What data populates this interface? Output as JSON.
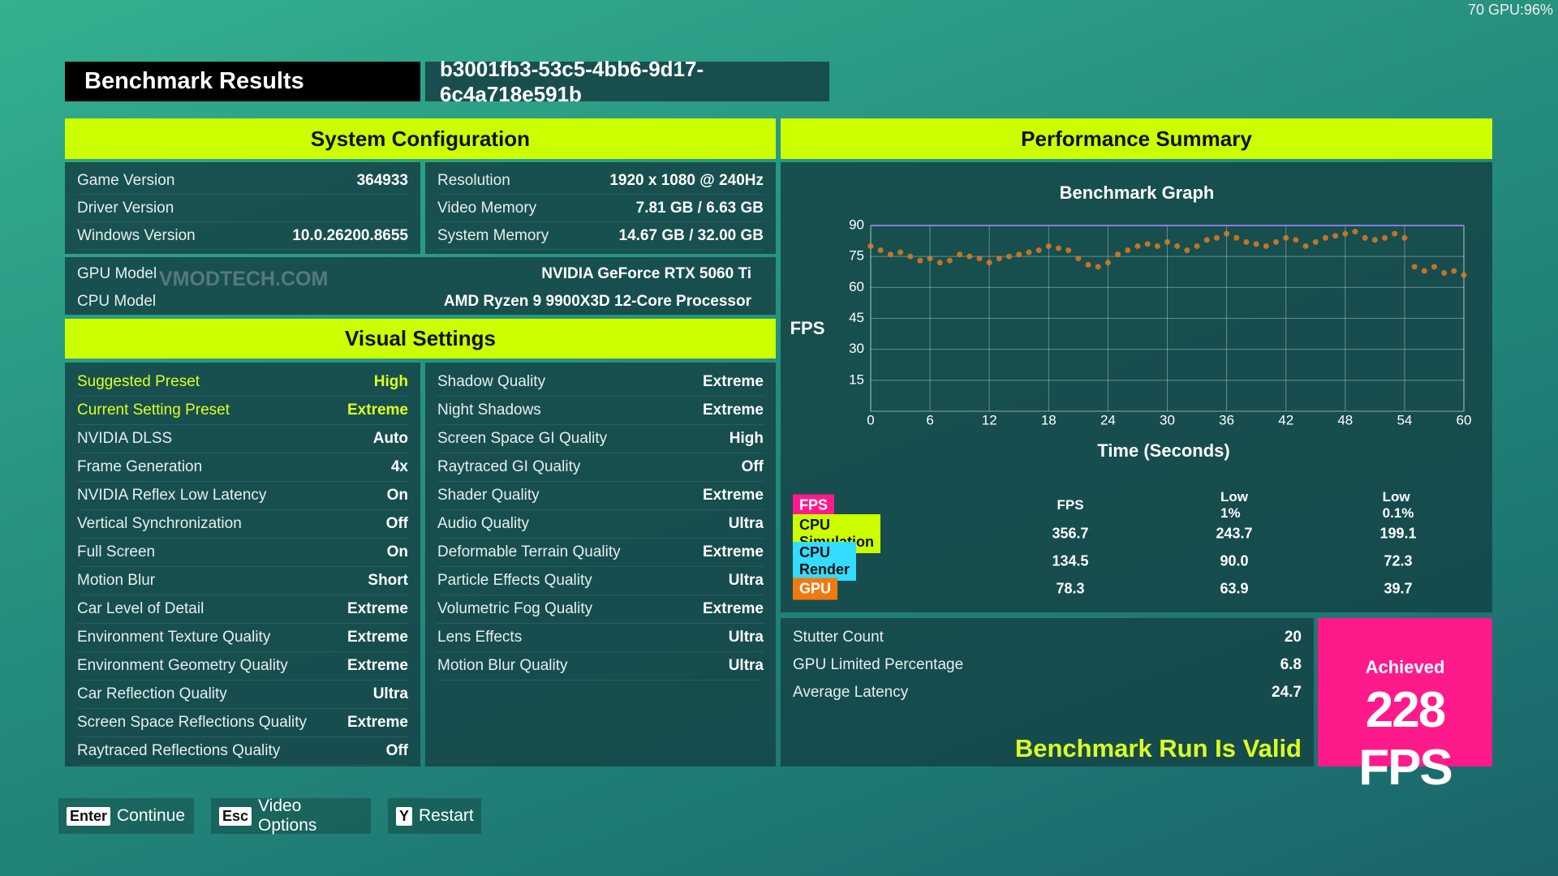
{
  "overlay": "70 GPU:96%",
  "watermark": "VMODTECH.COM",
  "header": {
    "title": "Benchmark Results",
    "run_id": "b3001fb3-53c5-4bb6-9d17-6c4a718e591b"
  },
  "system_configuration": {
    "title": "System Configuration",
    "left": [
      [
        "Game Version",
        "364933"
      ],
      [
        "Driver Version",
        ""
      ],
      [
        "Windows Version",
        "10.0.26200.8655"
      ]
    ],
    "right": [
      [
        "Resolution",
        "1920 x 1080 @ 240Hz"
      ],
      [
        "Video Memory",
        "7.81 GB / 6.63 GB"
      ],
      [
        "System Memory",
        "14.67 GB / 32.00 GB"
      ]
    ],
    "hardware": [
      [
        "GPU Model",
        "NVIDIA GeForce RTX 5060 Ti"
      ],
      [
        "CPU Model",
        "AMD Ryzen 9 9900X3D 12-Core Processor"
      ]
    ]
  },
  "visual_settings": {
    "title": "Visual Settings",
    "left": [
      [
        "Suggested Preset",
        "High"
      ],
      [
        "Current Setting Preset",
        "Extreme"
      ],
      [
        "NVIDIA DLSS",
        "Auto"
      ],
      [
        "Frame Generation",
        "4x"
      ],
      [
        "NVIDIA Reflex Low Latency",
        "On"
      ],
      [
        "Vertical Synchronization",
        "Off"
      ],
      [
        "Full Screen",
        "On"
      ],
      [
        "Motion Blur",
        "Short"
      ],
      [
        "Car Level of Detail",
        "Extreme"
      ],
      [
        "Environment Texture Quality",
        "Extreme"
      ],
      [
        "Environment Geometry Quality",
        "Extreme"
      ],
      [
        "Car Reflection Quality",
        "Ultra"
      ],
      [
        "Screen Space Reflections Quality",
        "Extreme"
      ],
      [
        "Raytraced Reflections Quality",
        "Off"
      ]
    ],
    "right": [
      [
        "Shadow Quality",
        "Extreme"
      ],
      [
        "Night Shadows",
        "Extreme"
      ],
      [
        "Screen Space GI Quality",
        "High"
      ],
      [
        "Raytraced GI Quality",
        "Off"
      ],
      [
        "Shader Quality",
        "Extreme"
      ],
      [
        "Audio Quality",
        "Ultra"
      ],
      [
        "Deformable Terrain Quality",
        "Extreme"
      ],
      [
        "Particle Effects Quality",
        "Ultra"
      ],
      [
        "Volumetric Fog Quality",
        "Extreme"
      ],
      [
        "Lens Effects",
        "Ultra"
      ],
      [
        "Motion Blur Quality",
        "Ultra"
      ]
    ]
  },
  "performance_summary": {
    "title": "Performance Summary",
    "chart_data": {
      "type": "scatter",
      "title": "Benchmark Graph",
      "y_label": "FPS",
      "x_label": "Time (Seconds)",
      "x": [
        0,
        1,
        2,
        3,
        4,
        5,
        6,
        7,
        8,
        9,
        10,
        11,
        12,
        13,
        14,
        15,
        16,
        17,
        18,
        19,
        20,
        21,
        22,
        23,
        24,
        25,
        26,
        27,
        28,
        29,
        30,
        31,
        32,
        33,
        34,
        35,
        36,
        37,
        38,
        39,
        40,
        41,
        42,
        43,
        44,
        45,
        46,
        47,
        48,
        49,
        50,
        51,
        52,
        53,
        54,
        55,
        56,
        57,
        58,
        59,
        60
      ],
      "series": [
        {
          "color": "#e07a20",
          "values": [
            80,
            78,
            76,
            77,
            75,
            73,
            74,
            72,
            73,
            76,
            75,
            74,
            72,
            74,
            75,
            76,
            77,
            78,
            80,
            79,
            78,
            74,
            71,
            70,
            72,
            76,
            78,
            80,
            81,
            80,
            82,
            80,
            78,
            80,
            83,
            84,
            86,
            84,
            82,
            81,
            80,
            82,
            84,
            83,
            80,
            82,
            84,
            85,
            86,
            87,
            84,
            83,
            84,
            86,
            84,
            70,
            68,
            70,
            67,
            68,
            66
          ]
        },
        {
          "color": "#8a7ae6",
          "x": [
            0,
            60
          ],
          "values": [
            90,
            90
          ]
        }
      ],
      "xlim": [
        0,
        60
      ],
      "ylim": [
        0,
        90
      ],
      "xticks": [
        0,
        6,
        12,
        18,
        24,
        30,
        36,
        42,
        48,
        54,
        60
      ],
      "yticks": [
        15,
        30,
        45,
        60,
        75,
        90
      ],
      "grid": true
    },
    "stats": {
      "header": {
        "label": "FPS",
        "color": "#ff1a8c"
      },
      "columns": [
        "FPS",
        "Low 1%",
        "Low 0.1%"
      ],
      "rows": [
        {
          "label": "CPU Simulation",
          "color": "#ccff00",
          "values": [
            "356.7",
            "243.7",
            "199.1"
          ]
        },
        {
          "label": "CPU Render",
          "color": "#33ddff",
          "values": [
            "134.5",
            "90.0",
            "72.3"
          ]
        },
        {
          "label": "GPU",
          "color": "#f07a10",
          "values": [
            "78.3",
            "63.9",
            "39.7"
          ]
        }
      ]
    }
  },
  "latency": {
    "rows": [
      [
        "Stutter Count",
        "20"
      ],
      [
        "GPU Limited Percentage",
        "6.8"
      ],
      [
        "Average Latency",
        "24.7"
      ]
    ],
    "status": "Benchmark Run Is Valid"
  },
  "achieved": {
    "label": "Achieved",
    "value": "228 FPS"
  },
  "buttons": [
    {
      "key": "Enter",
      "label": "Continue"
    },
    {
      "key": "Esc",
      "label": "Video Options"
    },
    {
      "key": "Y",
      "label": "Restart"
    }
  ]
}
